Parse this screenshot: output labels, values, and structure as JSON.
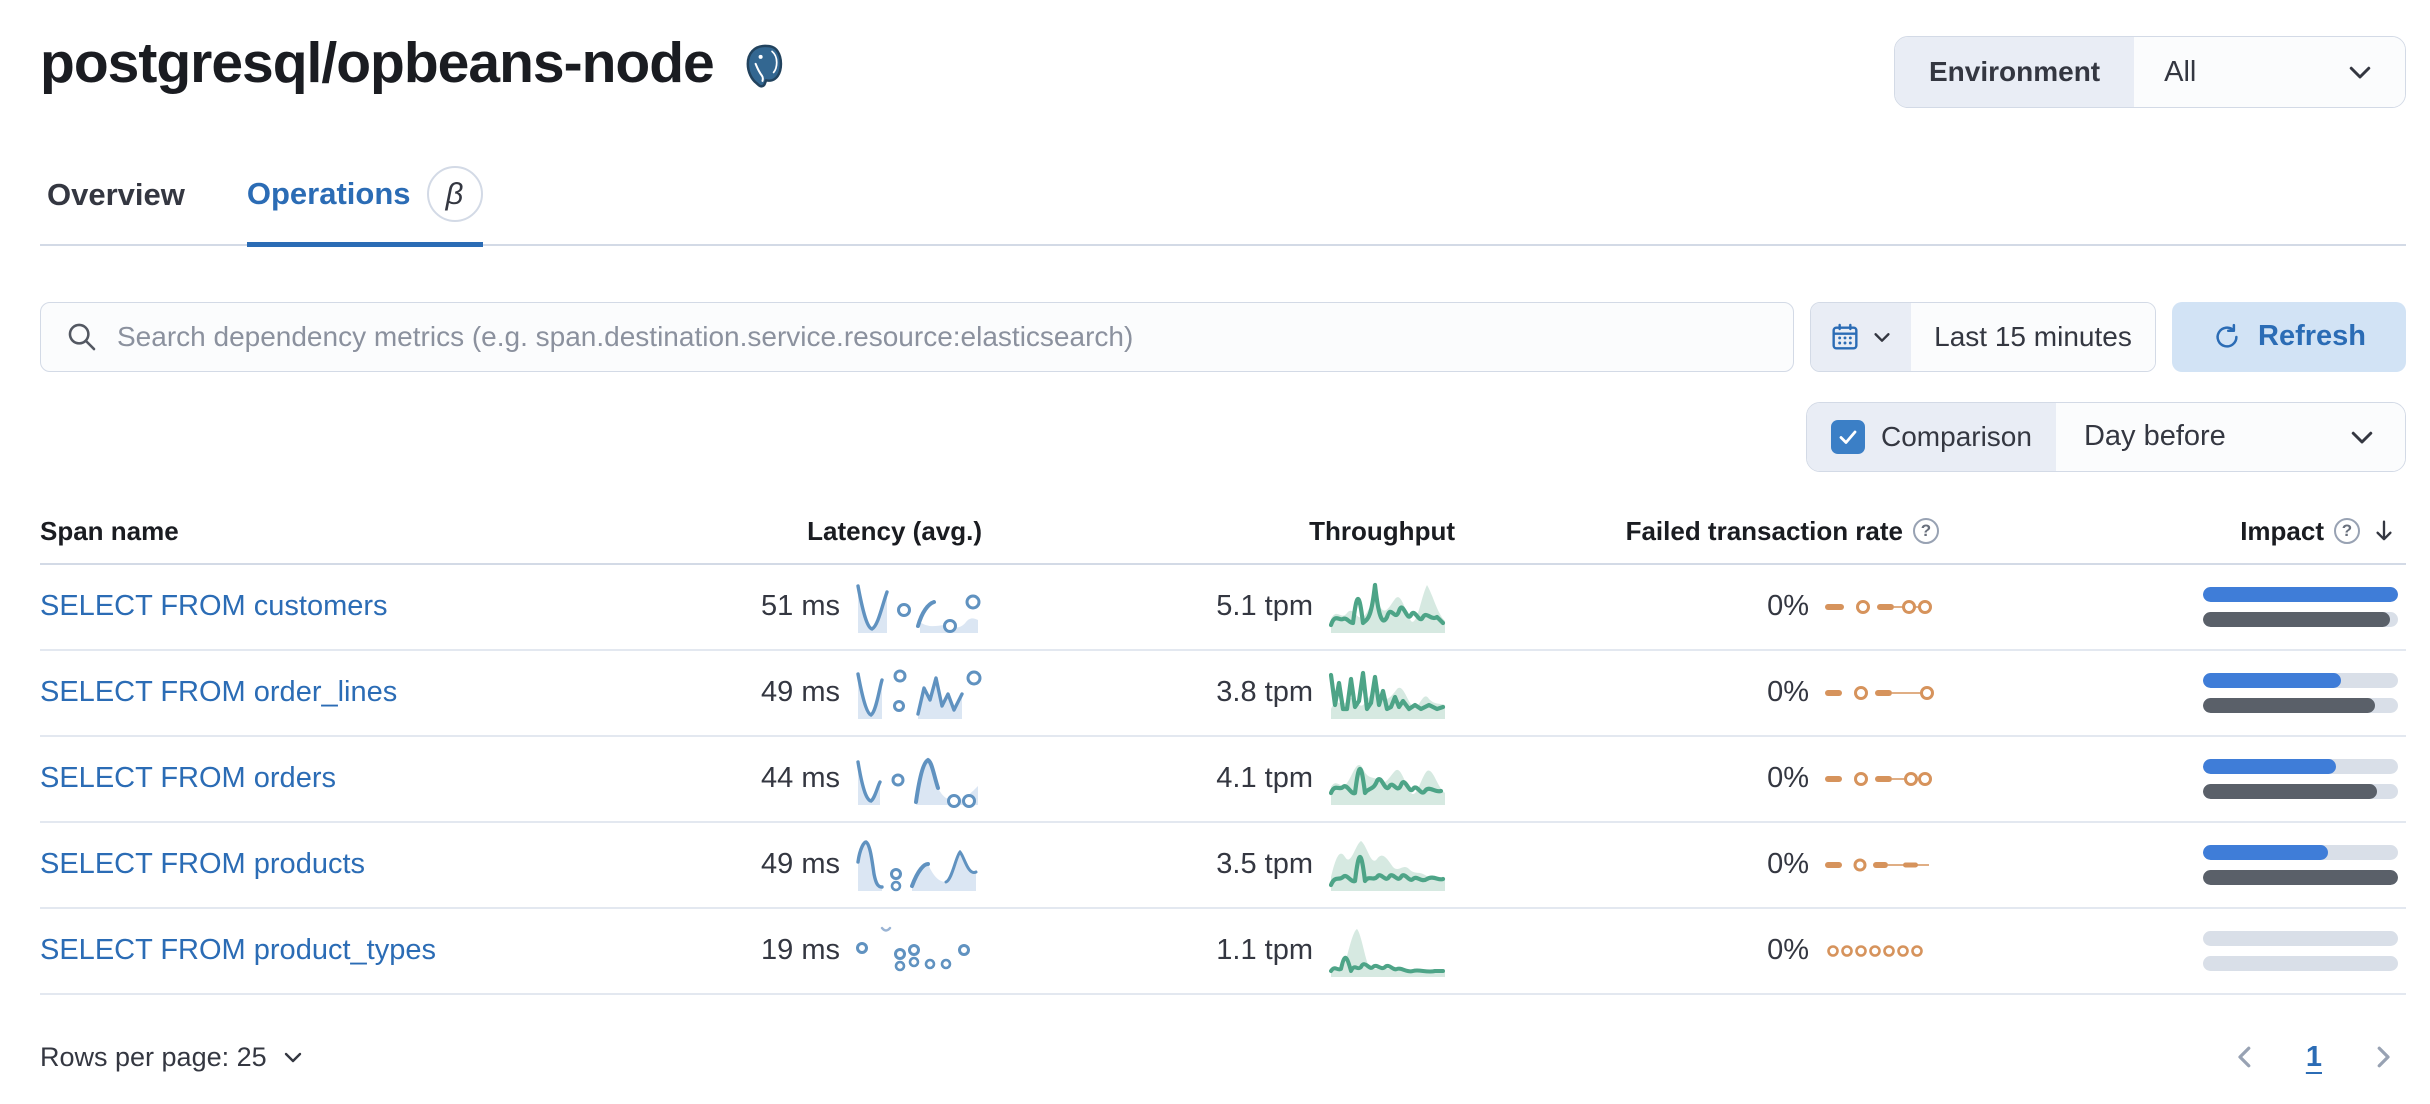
{
  "page": {
    "title": "postgresql/opbeans-node"
  },
  "environment": {
    "label": "Environment",
    "value": "All"
  },
  "tabs": {
    "overview": "Overview",
    "operations": "Operations",
    "beta_badge": "β"
  },
  "search": {
    "placeholder": "Search dependency metrics (e.g. span.destination.service.resource:elasticsearch)"
  },
  "time": {
    "range": "Last 15 minutes",
    "refresh_label": "Refresh"
  },
  "comparison": {
    "label": "Comparison",
    "checked": true,
    "value": "Day before"
  },
  "table": {
    "columns": {
      "span_name": "Span name",
      "latency": "Latency (avg.)",
      "throughput": "Throughput",
      "failed_rate": "Failed transaction rate",
      "impact": "Impact"
    },
    "rows": [
      {
        "span_name": "SELECT FROM customers",
        "latency": "51 ms",
        "throughput": "5.1 tpm",
        "failed_rate": "0%",
        "impact_pct": 100,
        "impact_prev_pct": 96
      },
      {
        "span_name": "SELECT FROM order_lines",
        "latency": "49 ms",
        "throughput": "3.8 tpm",
        "failed_rate": "0%",
        "impact_pct": 71,
        "impact_prev_pct": 88
      },
      {
        "span_name": "SELECT FROM orders",
        "latency": "44 ms",
        "throughput": "4.1 tpm",
        "failed_rate": "0%",
        "impact_pct": 68,
        "impact_prev_pct": 89
      },
      {
        "span_name": "SELECT FROM products",
        "latency": "49 ms",
        "throughput": "3.5 tpm",
        "failed_rate": "0%",
        "impact_pct": 64,
        "impact_prev_pct": 100
      },
      {
        "span_name": "SELECT FROM product_types",
        "latency": "19 ms",
        "throughput": "1.1 tpm",
        "failed_rate": "0%",
        "impact_pct": 0,
        "impact_prev_pct": 0
      }
    ]
  },
  "pagination": {
    "rows_per_page_label": "Rows per page: 25",
    "page": "1"
  },
  "icons": {
    "question_mark": "?"
  },
  "colors": {
    "link_blue": "#2b6cb5",
    "impact_blue": "#3f7dd8",
    "impact_grey": "#5a6069",
    "latency_blue": "#6092c0",
    "latency_area": "#dbe6f3",
    "throughput_green": "#4da487",
    "throughput_area": "#cce3da",
    "failed_orange": "#d6935c",
    "accent_bg": "#d2e3f5",
    "border": "#d3dae6"
  }
}
